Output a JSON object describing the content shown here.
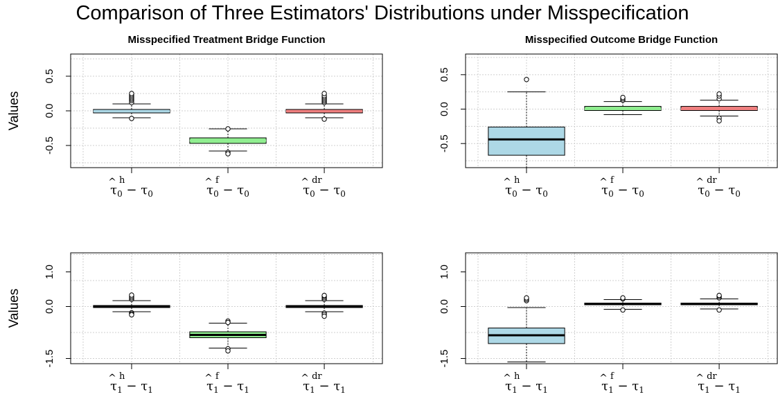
{
  "figure_title": "Comparison of Three Estimators' Distributions under Misspecification",
  "chart_data": [
    {
      "type": "box",
      "title": "Misspecified Treatment Bridge Function",
      "ylabel": "Values",
      "ylim": [
        -0.82,
        0.82
      ],
      "yticks": [
        -0.5,
        0.0,
        0.5
      ],
      "ytick_labels": [
        "-0.5",
        "0.0",
        "0.5"
      ],
      "grid": true,
      "categories": [
        {
          "hat": "^",
          "sym": "τ",
          "sub": "0",
          "sup": "h",
          "minus": "−",
          "rsym": "τ",
          "rsub": "0"
        },
        {
          "hat": "^",
          "sym": "τ",
          "sub": "0",
          "sup": "f",
          "minus": "−",
          "rsym": "τ",
          "rsub": "0"
        },
        {
          "hat": "^",
          "sym": "τ",
          "sub": "0",
          "sup": "dr",
          "minus": "−",
          "rsym": "τ",
          "rsub": "0"
        }
      ],
      "boxes": [
        {
          "q1": -0.03,
          "median": -0.005,
          "q3": 0.02,
          "whisker_low": -0.1,
          "whisker_high": 0.1,
          "fill": "#add8e6",
          "median_color": "#add8e6",
          "outliers": [
            -0.11,
            0.12,
            0.15,
            0.17,
            0.19,
            0.21,
            0.23,
            0.25
          ]
        },
        {
          "q1": -0.47,
          "median": -0.43,
          "q3": -0.39,
          "whisker_low": -0.58,
          "whisker_high": -0.26,
          "fill": "#90ee90",
          "median_color": "#90ee90",
          "outliers": [
            -0.6,
            -0.62,
            -0.26
          ]
        },
        {
          "q1": -0.03,
          "median": -0.005,
          "q3": 0.02,
          "whisker_low": -0.1,
          "whisker_high": 0.1,
          "fill": "#f08080",
          "median_color": "#f08080",
          "outliers": [
            -0.12,
            0.12,
            0.14,
            0.16,
            0.18,
            0.2,
            0.22,
            0.25
          ]
        }
      ]
    },
    {
      "type": "box",
      "title": "Misspecified Outcome Bridge Function",
      "ylabel": "",
      "ylim": [
        -0.85,
        0.8
      ],
      "yticks": [
        -0.5,
        0.0,
        0.5
      ],
      "ytick_labels": [
        "-0.5",
        "0.0",
        "0.5"
      ],
      "grid": true,
      "categories": [
        {
          "hat": "^",
          "sym": "τ",
          "sub": "0",
          "sup": "h",
          "minus": "−",
          "rsym": "τ",
          "rsub": "0"
        },
        {
          "hat": "^",
          "sym": "τ",
          "sub": "0",
          "sup": "f",
          "minus": "−",
          "rsym": "τ",
          "rsub": "0"
        },
        {
          "hat": "^",
          "sym": "τ",
          "sub": "0",
          "sup": "dr",
          "minus": "−",
          "rsym": "τ",
          "rsub": "0"
        }
      ],
      "boxes": [
        {
          "q1": -0.67,
          "median": -0.44,
          "q3": -0.26,
          "whisker_low": -0.85,
          "whisker_high": 0.25,
          "fill": "#add8e6",
          "median_color": "#000000",
          "outliers": [
            0.43
          ]
        },
        {
          "q1": -0.02,
          "median": 0.0,
          "q3": 0.04,
          "whisker_low": -0.08,
          "whisker_high": 0.11,
          "fill": "#90ee90",
          "median_color": "#90ee90",
          "outliers": [
            0.13,
            0.15,
            0.17
          ]
        },
        {
          "q1": -0.02,
          "median": 0.0,
          "q3": 0.04,
          "whisker_low": -0.1,
          "whisker_high": 0.13,
          "fill": "#f08080",
          "median_color": "#f08080",
          "outliers": [
            -0.13,
            -0.17,
            0.15,
            0.19,
            0.22
          ]
        }
      ]
    },
    {
      "type": "box",
      "title": "",
      "ylabel": "Values",
      "ylim": [
        -1.65,
        1.55
      ],
      "yticks": [
        -1.5,
        0.0,
        1.0
      ],
      "ytick_labels": [
        "-1.5",
        "0.0",
        "1.0"
      ],
      "grid": true,
      "categories": [
        {
          "hat": "^",
          "sym": "τ",
          "sub": "1",
          "sup": "h",
          "minus": "−",
          "rsym": "τ",
          "rsub": "1"
        },
        {
          "hat": "^",
          "sym": "τ",
          "sub": "1",
          "sup": "f",
          "minus": "−",
          "rsym": "τ",
          "rsub": "1"
        },
        {
          "hat": "^",
          "sym": "τ",
          "sub": "1",
          "sup": "dr",
          "minus": "−",
          "rsym": "τ",
          "rsub": "1"
        }
      ],
      "boxes": [
        {
          "q1": -0.03,
          "median": 0.0,
          "q3": 0.03,
          "whisker_low": -0.15,
          "whisker_high": 0.17,
          "fill": "#add8e6",
          "median_color": "#000000",
          "outliers": [
            -0.18,
            -0.21,
            -0.24,
            0.21,
            0.25,
            0.29,
            0.33
          ]
        },
        {
          "q1": -0.9,
          "median": -0.82,
          "q3": -0.73,
          "whisker_low": -1.2,
          "whisker_high": -0.48,
          "fill": "#90ee90",
          "median_color": "#000000",
          "outliers": [
            -1.22,
            -1.28,
            -0.42,
            -0.46
          ]
        },
        {
          "q1": -0.03,
          "median": 0.0,
          "q3": 0.03,
          "whisker_low": -0.15,
          "whisker_high": 0.17,
          "fill": "#f08080",
          "median_color": "#000000",
          "outliers": [
            -0.19,
            -0.23,
            -0.28,
            0.21,
            0.25,
            0.29,
            0.32
          ]
        }
      ]
    },
    {
      "type": "box",
      "title": "",
      "ylabel": "",
      "ylim": [
        -1.65,
        1.55
      ],
      "yticks": [
        -1.5,
        0.0,
        1.0
      ],
      "ytick_labels": [
        "-1.5",
        "0.0",
        "1.0"
      ],
      "grid": true,
      "categories": [
        {
          "hat": "^",
          "sym": "τ",
          "sub": "1",
          "sup": "h",
          "minus": "−",
          "rsym": "τ",
          "rsub": "1"
        },
        {
          "hat": "^",
          "sym": "τ",
          "sub": "1",
          "sup": "f",
          "minus": "−",
          "rsym": "τ",
          "rsub": "1"
        },
        {
          "hat": "^",
          "sym": "τ",
          "sub": "1",
          "sup": "dr",
          "minus": "−",
          "rsym": "τ",
          "rsub": "1"
        }
      ],
      "boxes": [
        {
          "q1": -1.07,
          "median": -0.83,
          "q3": -0.62,
          "whisker_low": -1.6,
          "whisker_high": -0.03,
          "fill": "#add8e6",
          "median_color": "#000000",
          "outliers": [
            0.17,
            0.21,
            0.25
          ]
        },
        {
          "q1": 0.05,
          "median": 0.07,
          "q3": 0.1,
          "whisker_low": -0.08,
          "whisker_high": 0.2,
          "fill": "#90ee90",
          "median_color": "#000000",
          "outliers": [
            -0.1,
            0.22,
            0.25
          ]
        },
        {
          "q1": 0.05,
          "median": 0.07,
          "q3": 0.1,
          "whisker_low": -0.07,
          "whisker_high": 0.22,
          "fill": "#f08080",
          "median_color": "#000000",
          "outliers": [
            -0.1,
            0.25,
            0.29,
            0.32
          ]
        }
      ]
    }
  ]
}
